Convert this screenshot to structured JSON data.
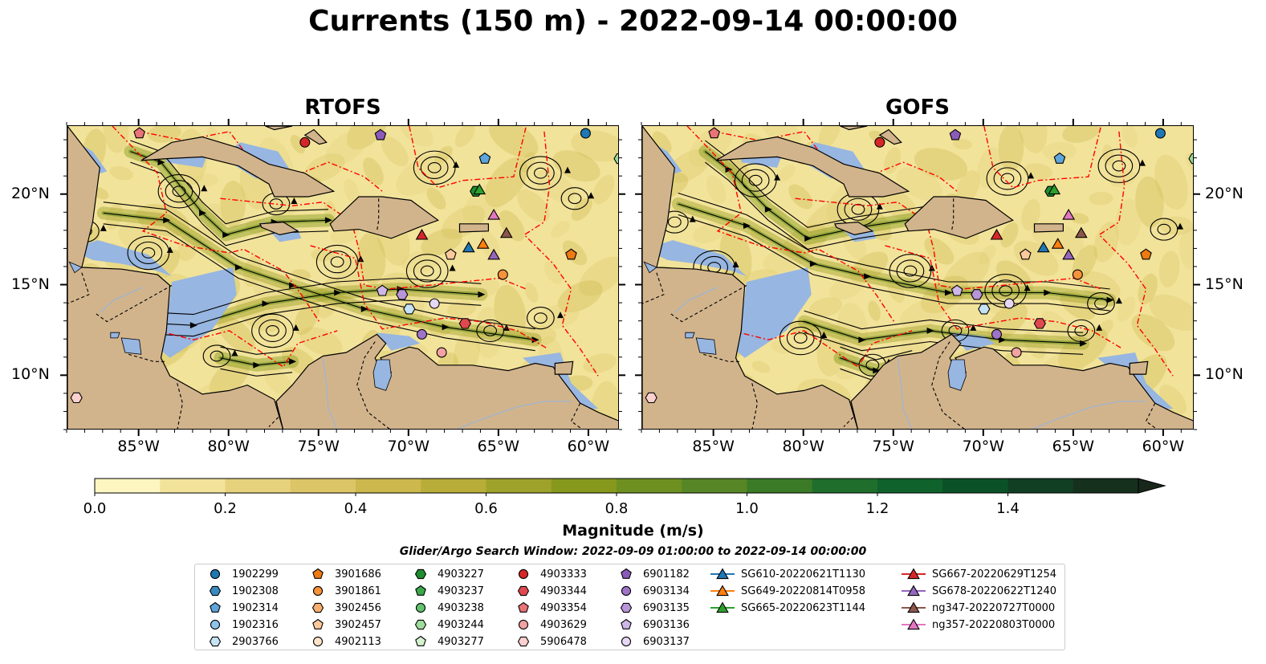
{
  "title": "Currents (150 m) - 2022-09-14 00:00:00",
  "panels": [
    {
      "title": "RTOFS"
    },
    {
      "title": "GOFS"
    }
  ],
  "axes": {
    "lon_ticks": [
      "85°W",
      "80°W",
      "75°W",
      "70°W",
      "65°W",
      "60°W"
    ],
    "lat_ticks": [
      "20°N",
      "15°N",
      "10°N"
    ]
  },
  "colorbar": {
    "label": "Magnitude (m/s)",
    "ticks": [
      "0.0",
      "0.2",
      "0.4",
      "0.6",
      "0.8",
      "1.0",
      "1.2",
      "1.4"
    ],
    "colors": [
      "#fdf6c1",
      "#f2e39a",
      "#e6d27d",
      "#dbc567",
      "#cdb84d",
      "#b8ad38",
      "#9fa22a",
      "#86991d",
      "#6e9020",
      "#568625",
      "#3b7a27",
      "#1f6e2c",
      "#0f622c",
      "#0b5128",
      "#103f24",
      "#16301e",
      "#19261a"
    ]
  },
  "search_window": "Glider/Argo Search Window: 2022-09-09 01:00:00 to 2022-09-14 00:00:00",
  "colors": {
    "land": "#d2b48c",
    "lake": "#97b6e1",
    "eez": "#ff0000"
  },
  "legend": {
    "columns": [
      [
        {
          "label": "1902299",
          "marker": "circle",
          "color": "#1f77b4"
        },
        {
          "label": "1902308",
          "marker": "hexagon",
          "color": "#3a8ac2"
        },
        {
          "label": "1902314",
          "marker": "pentagon",
          "color": "#5da5da"
        },
        {
          "label": "1902316",
          "marker": "circle",
          "color": "#8fc3ea"
        },
        {
          "label": "2903766",
          "marker": "hexagon",
          "color": "#c6e2f5"
        }
      ],
      [
        {
          "label": "3901686",
          "marker": "pentagon",
          "color": "#ee7a12"
        },
        {
          "label": "3901861",
          "marker": "circle",
          "color": "#f5923a"
        },
        {
          "label": "3902456",
          "marker": "hexagon",
          "color": "#f8ae6d"
        },
        {
          "label": "3902457",
          "marker": "pentagon",
          "color": "#fbc99c"
        },
        {
          "label": "4902113",
          "marker": "circle",
          "color": "#fde3c8"
        }
      ],
      [
        {
          "label": "4903227",
          "marker": "hexagon",
          "color": "#1f8c32"
        },
        {
          "label": "4903237",
          "marker": "pentagon",
          "color": "#3aa84b"
        },
        {
          "label": "4903238",
          "marker": "circle",
          "color": "#62c26d"
        },
        {
          "label": "4903244",
          "marker": "hexagon",
          "color": "#9edb9c"
        },
        {
          "label": "4903277",
          "marker": "pentagon",
          "color": "#d5f2cf"
        }
      ],
      [
        {
          "label": "4903333",
          "marker": "circle",
          "color": "#d62728"
        },
        {
          "label": "4903344",
          "marker": "hexagon",
          "color": "#e04850"
        },
        {
          "label": "4903354",
          "marker": "pentagon",
          "color": "#ea7378"
        },
        {
          "label": "4903629",
          "marker": "circle",
          "color": "#f3a2a2"
        },
        {
          "label": "5906478",
          "marker": "hexagon",
          "color": "#fbd0cf"
        }
      ],
      [
        {
          "label": "6901182",
          "marker": "pentagon",
          "color": "#8a5bb8"
        },
        {
          "label": "6903134",
          "marker": "circle",
          "color": "#9e73c8"
        },
        {
          "label": "6903135",
          "marker": "hexagon",
          "color": "#b795d9"
        },
        {
          "label": "6903136",
          "marker": "pentagon",
          "color": "#cfb6e8"
        },
        {
          "label": "6903137",
          "marker": "circle",
          "color": "#e6d8f4"
        }
      ],
      [
        {
          "label": "SG610-20220621T1130",
          "marker": "triangle",
          "color": "#1f77b4"
        },
        {
          "label": "SG649-20220814T0958",
          "marker": "triangle",
          "color": "#ff7f0e"
        },
        {
          "label": "SG665-20220623T1144",
          "marker": "triangle",
          "color": "#2ca02c"
        }
      ],
      [
        {
          "label": "SG667-20220629T1254",
          "marker": "triangle",
          "color": "#d62728"
        },
        {
          "label": "SG678-20220622T1240",
          "marker": "triangle",
          "color": "#9467bd"
        },
        {
          "label": "ng347-20220727T0000",
          "marker": "triangle",
          "color": "#8c564b"
        },
        {
          "label": "ng357-20220803T0000",
          "marker": "triangle",
          "color": "#e377c2"
        }
      ]
    ]
  },
  "floats": [
    {
      "lon": -85.0,
      "lat": 23.4,
      "marker": "pentagon",
      "color": "#ea7378"
    },
    {
      "lon": -75.8,
      "lat": 22.9,
      "marker": "circle",
      "color": "#d62728"
    },
    {
      "lon": -71.6,
      "lat": 23.3,
      "marker": "pentagon",
      "color": "#8a5bb8"
    },
    {
      "lon": -60.2,
      "lat": 23.4,
      "marker": "circle",
      "color": "#1f77b4"
    },
    {
      "lon": -58.3,
      "lat": 22.0,
      "marker": "hexagon",
      "color": "#9edb9c"
    },
    {
      "lon": -65.8,
      "lat": 22.0,
      "marker": "pentagon",
      "color": "#5da5da"
    },
    {
      "lon": -66.3,
      "lat": 20.2,
      "marker": "hexagon",
      "color": "#1f8c32"
    },
    {
      "lon": -67.7,
      "lat": 16.7,
      "marker": "pentagon",
      "color": "#fbc99c"
    },
    {
      "lon": -61.0,
      "lat": 16.7,
      "marker": "pentagon",
      "color": "#ee7a12"
    },
    {
      "lon": -64.8,
      "lat": 15.6,
      "marker": "circle",
      "color": "#f5923a"
    },
    {
      "lon": -71.5,
      "lat": 14.7,
      "marker": "pentagon",
      "color": "#cfb6e8"
    },
    {
      "lon": -70.4,
      "lat": 14.5,
      "marker": "hexagon",
      "color": "#b795d9"
    },
    {
      "lon": -70.0,
      "lat": 13.7,
      "marker": "hexagon",
      "color": "#c6e2f5"
    },
    {
      "lon": -68.6,
      "lat": 14.0,
      "marker": "circle",
      "color": "#e6d8f4"
    },
    {
      "lon": -66.9,
      "lat": 12.9,
      "marker": "hexagon",
      "color": "#e04850"
    },
    {
      "lon": -69.3,
      "lat": 12.3,
      "marker": "circle",
      "color": "#9e73c8"
    },
    {
      "lon": -68.2,
      "lat": 11.3,
      "marker": "circle",
      "color": "#f3a2a2"
    },
    {
      "lon": -88.5,
      "lat": 8.8,
      "marker": "hexagon",
      "color": "#fbd0cf"
    }
  ],
  "gliders": [
    {
      "lon": -69.3,
      "lat": 17.8,
      "color": "#d62728"
    },
    {
      "lon": -66.7,
      "lat": 17.1,
      "color": "#1f77b4"
    },
    {
      "lon": -65.9,
      "lat": 17.3,
      "color": "#ff7f0e"
    },
    {
      "lon": -65.3,
      "lat": 16.7,
      "color": "#9467bd"
    },
    {
      "lon": -64.6,
      "lat": 17.9,
      "color": "#8c564b"
    },
    {
      "lon": -65.3,
      "lat": 18.9,
      "color": "#e377c2"
    },
    {
      "lon": -66.1,
      "lat": 20.3,
      "color": "#2ca02c"
    }
  ]
}
